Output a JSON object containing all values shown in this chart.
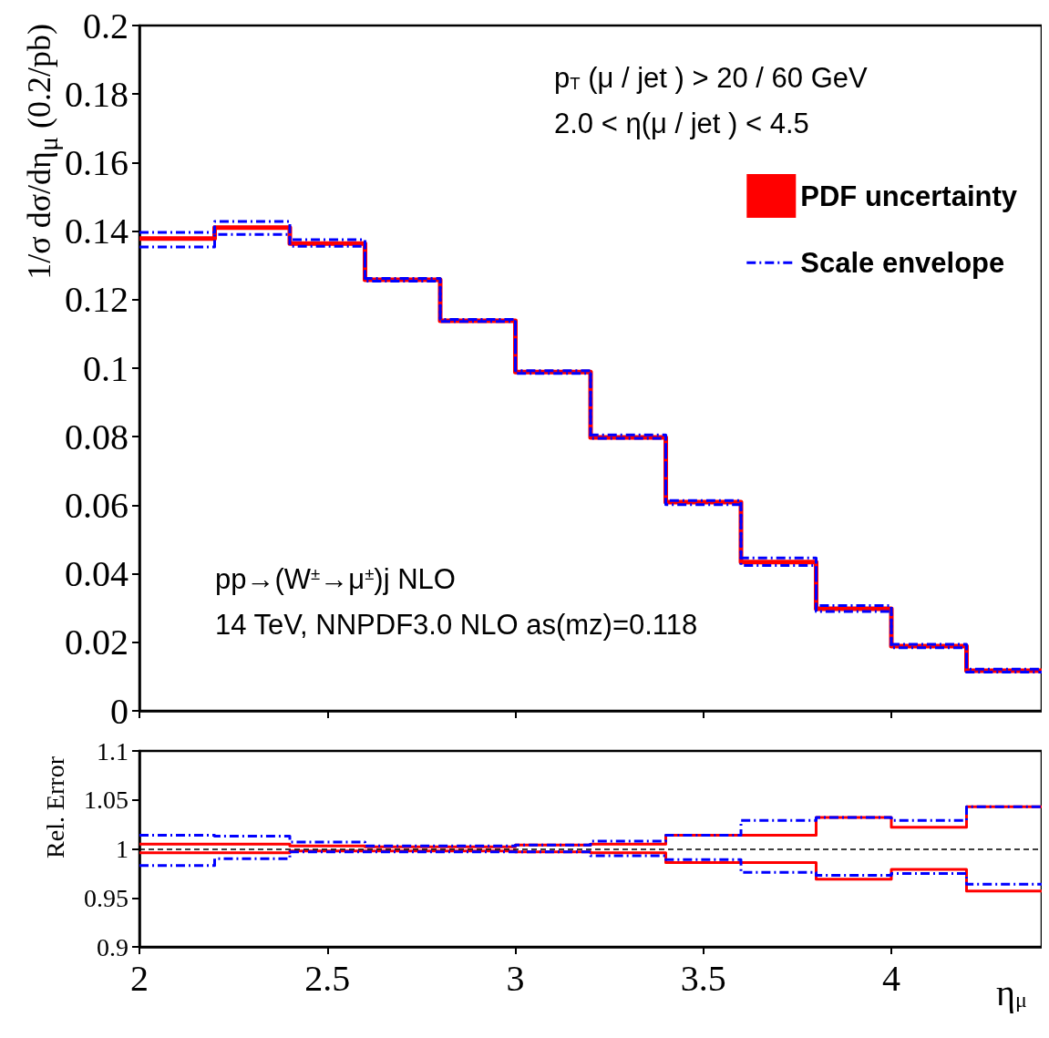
{
  "chart_data": [
    {
      "type": "step",
      "ylabel": "1/σ dσ/dη$_{μ}$ (0.2/pb)",
      "x": [
        2.0,
        2.2,
        2.4,
        2.6,
        2.8,
        3.0,
        3.2,
        3.4,
        3.6,
        3.8,
        4.0,
        4.2,
        4.4
      ],
      "xlim": [
        2,
        4.4
      ],
      "xticks": [
        2,
        2.5,
        3,
        3.5,
        4
      ],
      "ylim": [
        0,
        0.2
      ],
      "yticks": [
        0,
        0.02,
        0.04,
        0.06,
        0.08,
        0.1,
        0.12,
        0.14,
        0.16,
        0.18,
        0.2
      ],
      "tick_labels": "y",
      "grid": false,
      "legend": "top right",
      "annotations": [
        "p$_{T}$ (μ / jet ) > 20 / 60 GeV",
        "2.0 < η(μ / jet ) < 4.5",
        "pp→(W$^{±}$→μ$^{±}$)j NLO",
        "14 TeV, NNPDF3.0 NLO as(mz)=0.118"
      ],
      "series": [
        {
          "name": "PDF uncertainty",
          "color": "#ff0000",
          "line_style": "solid",
          "values": [
            0.1378,
            0.141,
            0.1364,
            0.1258,
            0.1138,
            0.0989,
            0.0798,
            0.0609,
            0.0434,
            0.0298,
            0.0189,
            0.0117,
            0.0117
          ]
        },
        {
          "name": "Scale envelope",
          "color": "#0000ff",
          "line_style": "dashed",
          "values": [
            0.1396,
            0.1428,
            0.1375,
            0.1262,
            0.1142,
            0.0993,
            0.0805,
            0.0614,
            0.0446,
            0.0307,
            0.0194,
            0.0122,
            0.0122
          ]
        },
        {
          "color": "#0000ff",
          "line_style": "dashed",
          "values": [
            0.1354,
            0.139,
            0.1356,
            0.1254,
            0.1136,
            0.0985,
            0.0795,
            0.0602,
            0.0424,
            0.029,
            0.0184,
            0.0113,
            0.0113
          ]
        }
      ]
    },
    {
      "type": "step",
      "ylabel": "Rel. Error",
      "xlabel": "η$_{μ}$",
      "x": [
        2.0,
        2.2,
        2.4,
        2.6,
        2.8,
        3.0,
        3.2,
        3.4,
        3.6,
        3.8,
        4.0,
        4.2,
        4.4
      ],
      "xlim": [
        2,
        4.4
      ],
      "xticks": [
        2,
        2.5,
        3,
        3.5,
        4
      ],
      "ylim": [
        0.9,
        1.1
      ],
      "yticks": [
        0.9,
        0.95,
        1,
        1.05,
        1.1
      ],
      "grid": false,
      "ref_lines": [
        {
          "axis": "y",
          "value": 1,
          "color": "#000000",
          "line_style": "dashed"
        }
      ],
      "series": [
        {
          "color": "#ff0000",
          "line_style": "solid",
          "values": [
            1.005,
            1.005,
            1.003,
            1.002,
            1.002,
            1.004,
            1.005,
            1.014,
            1.014,
            1.032,
            1.022,
            1.043,
            1.043
          ]
        },
        {
          "color": "#ff0000",
          "line_style": "solid",
          "values": [
            0.996,
            0.996,
            0.998,
            0.998,
            0.998,
            0.997,
            0.996,
            0.986,
            0.986,
            0.969,
            0.979,
            0.957,
            0.957
          ]
        },
        {
          "color": "#0000ff",
          "line_style": "dashed",
          "values": [
            1.014,
            1.013,
            1.007,
            1.003,
            1.003,
            1.004,
            1.008,
            1.014,
            1.029,
            1.032,
            1.029,
            1.043,
            1.043
          ]
        },
        {
          "color": "#0000ff",
          "line_style": "dashed",
          "values": [
            0.983,
            0.99,
            0.997,
            0.997,
            0.997,
            0.997,
            0.993,
            0.989,
            0.976,
            0.973,
            0.975,
            0.964,
            0.964
          ]
        }
      ]
    }
  ]
}
